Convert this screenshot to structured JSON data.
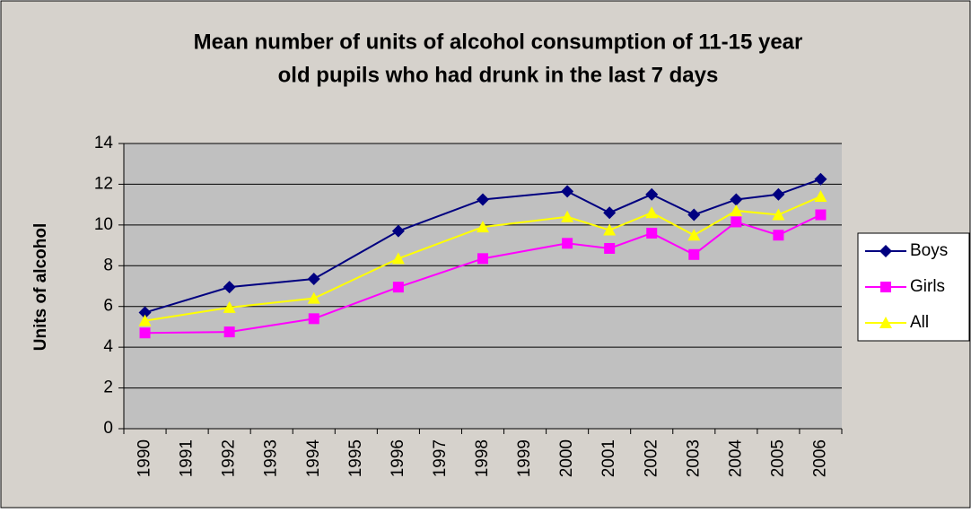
{
  "chart_data": {
    "type": "line",
    "title": [
      "Mean number of units of alcohol consumption of 11-15 year",
      "old pupils who had drunk in the last 7 days"
    ],
    "y_label": "Units of alcohol",
    "x": [
      1990,
      1992,
      1994,
      1996,
      1998,
      2000,
      2001,
      2002,
      2003,
      2004,
      2005,
      2006
    ],
    "xlim": [
      1989.5,
      2006.5
    ],
    "xticks": [
      1990,
      1991,
      1992,
      1993,
      1994,
      1995,
      1996,
      1997,
      1998,
      1999,
      2000,
      2001,
      2002,
      2003,
      2004,
      2005,
      2006
    ],
    "ylim": [
      0,
      14
    ],
    "yticks": [
      0,
      2,
      4,
      6,
      8,
      10,
      12,
      14
    ],
    "grid": true,
    "legend": "right",
    "series": [
      {
        "name": "Boys",
        "color": "#000080",
        "marker": "diamond",
        "values": [
          5.7,
          6.95,
          7.35,
          9.7,
          11.25,
          11.65,
          10.6,
          11.5,
          10.5,
          11.25,
          11.5,
          12.25
        ]
      },
      {
        "name": "Girls",
        "color": "#ff00ff",
        "marker": "square",
        "values": [
          4.7,
          4.75,
          5.4,
          6.95,
          8.35,
          9.1,
          8.85,
          9.6,
          8.55,
          10.15,
          9.5,
          10.5
        ]
      },
      {
        "name": "All",
        "color": "#ffff00",
        "marker": "triangle",
        "values": [
          5.3,
          5.95,
          6.4,
          8.35,
          9.9,
          10.4,
          9.75,
          10.6,
          9.5,
          10.7,
          10.5,
          11.4
        ]
      }
    ]
  }
}
